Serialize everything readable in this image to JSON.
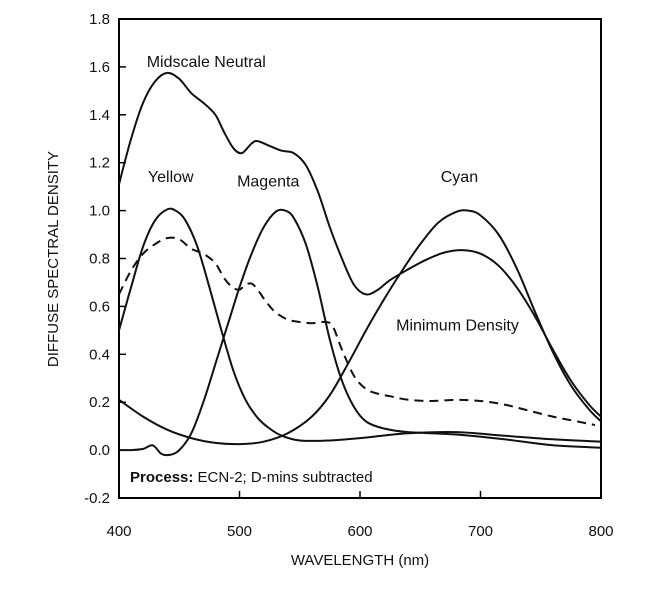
{
  "chart_data": {
    "type": "line",
    "xlabel": "WAVELENGTH (nm)",
    "ylabel": "DIFFUSE SPECTRAL DENSITY",
    "xlim": [
      400,
      800
    ],
    "ylim": [
      -0.2,
      1.8
    ],
    "x_ticks": [
      "400",
      "500",
      "600",
      "700",
      "800"
    ],
    "y_ticks": [
      "-0.2",
      "0.0",
      "0.2",
      "0.4",
      "0.6",
      "0.8",
      "1.0",
      "1.2",
      "1.4",
      "1.6",
      "1.8"
    ],
    "grid": false,
    "note": {
      "bold": "Process:",
      "text": " ECN-2; D-mins subtracted"
    },
    "series": [
      {
        "name": "Midscale Neutral",
        "dash": false,
        "label_pos": [
          423,
          1.6
        ],
        "points": [
          [
            400,
            1.11
          ],
          [
            410,
            1.3
          ],
          [
            420,
            1.45
          ],
          [
            430,
            1.54
          ],
          [
            440,
            1.575
          ],
          [
            450,
            1.55
          ],
          [
            460,
            1.49
          ],
          [
            470,
            1.45
          ],
          [
            480,
            1.4
          ],
          [
            487,
            1.33
          ],
          [
            495,
            1.26
          ],
          [
            502,
            1.24
          ],
          [
            510,
            1.28
          ],
          [
            515,
            1.29
          ],
          [
            525,
            1.27
          ],
          [
            535,
            1.25
          ],
          [
            545,
            1.24
          ],
          [
            555,
            1.19
          ],
          [
            565,
            1.08
          ],
          [
            575,
            0.93
          ],
          [
            585,
            0.8
          ],
          [
            595,
            0.69
          ],
          [
            605,
            0.65
          ],
          [
            615,
            0.67
          ],
          [
            625,
            0.71
          ],
          [
            640,
            0.755
          ],
          [
            655,
            0.795
          ],
          [
            670,
            0.825
          ],
          [
            685,
            0.835
          ],
          [
            700,
            0.82
          ],
          [
            715,
            0.77
          ],
          [
            730,
            0.68
          ],
          [
            745,
            0.56
          ],
          [
            760,
            0.42
          ],
          [
            775,
            0.29
          ],
          [
            790,
            0.19
          ],
          [
            800,
            0.14
          ]
        ]
      },
      {
        "name": "Yellow",
        "dash": false,
        "label_pos": [
          424,
          1.12
        ],
        "points": [
          [
            400,
            0.5
          ],
          [
            410,
            0.68
          ],
          [
            420,
            0.85
          ],
          [
            430,
            0.96
          ],
          [
            440,
            1.005
          ],
          [
            447,
            1.0
          ],
          [
            455,
            0.96
          ],
          [
            465,
            0.85
          ],
          [
            475,
            0.68
          ],
          [
            485,
            0.5
          ],
          [
            495,
            0.33
          ],
          [
            505,
            0.21
          ],
          [
            515,
            0.135
          ],
          [
            525,
            0.09
          ],
          [
            535,
            0.06
          ],
          [
            550,
            0.04
          ],
          [
            575,
            0.04
          ],
          [
            600,
            0.05
          ],
          [
            640,
            0.07
          ],
          [
            680,
            0.075
          ],
          [
            720,
            0.06
          ],
          [
            760,
            0.045
          ],
          [
            800,
            0.035
          ]
        ]
      },
      {
        "name": "Magenta",
        "dash": false,
        "label_pos": [
          498,
          1.1
        ],
        "points": [
          [
            400,
            0.0
          ],
          [
            410,
            0.0
          ],
          [
            420,
            0.005
          ],
          [
            428,
            0.02
          ],
          [
            435,
            -0.015
          ],
          [
            442,
            -0.02
          ],
          [
            450,
            0.0
          ],
          [
            460,
            0.07
          ],
          [
            470,
            0.2
          ],
          [
            480,
            0.36
          ],
          [
            490,
            0.52
          ],
          [
            500,
            0.68
          ],
          [
            510,
            0.82
          ],
          [
            520,
            0.93
          ],
          [
            530,
            0.995
          ],
          [
            538,
            1.0
          ],
          [
            545,
            0.97
          ],
          [
            555,
            0.86
          ],
          [
            565,
            0.68
          ],
          [
            575,
            0.46
          ],
          [
            585,
            0.29
          ],
          [
            595,
            0.18
          ],
          [
            605,
            0.12
          ],
          [
            620,
            0.09
          ],
          [
            640,
            0.075
          ],
          [
            680,
            0.065
          ],
          [
            720,
            0.045
          ],
          [
            760,
            0.02
          ],
          [
            800,
            0.01
          ]
        ]
      },
      {
        "name": "Cyan",
        "dash": false,
        "label_pos": [
          667,
          1.12
        ],
        "points": [
          [
            400,
            0.21
          ],
          [
            420,
            0.14
          ],
          [
            440,
            0.085
          ],
          [
            460,
            0.05
          ],
          [
            480,
            0.03
          ],
          [
            500,
            0.025
          ],
          [
            520,
            0.035
          ],
          [
            540,
            0.07
          ],
          [
            560,
            0.14
          ],
          [
            575,
            0.23
          ],
          [
            590,
            0.36
          ],
          [
            605,
            0.5
          ],
          [
            620,
            0.63
          ],
          [
            635,
            0.75
          ],
          [
            650,
            0.86
          ],
          [
            665,
            0.95
          ],
          [
            680,
            0.995
          ],
          [
            690,
            1.0
          ],
          [
            700,
            0.98
          ],
          [
            715,
            0.9
          ],
          [
            730,
            0.76
          ],
          [
            745,
            0.58
          ],
          [
            760,
            0.41
          ],
          [
            775,
            0.27
          ],
          [
            790,
            0.17
          ],
          [
            800,
            0.12
          ]
        ]
      },
      {
        "name": "Minimum Density",
        "dash": true,
        "label_pos": [
          630,
          0.5
        ],
        "points": [
          [
            400,
            0.65
          ],
          [
            410,
            0.75
          ],
          [
            420,
            0.82
          ],
          [
            430,
            0.86
          ],
          [
            440,
            0.885
          ],
          [
            450,
            0.88
          ],
          [
            460,
            0.84
          ],
          [
            470,
            0.82
          ],
          [
            480,
            0.78
          ],
          [
            487,
            0.72
          ],
          [
            494,
            0.68
          ],
          [
            500,
            0.67
          ],
          [
            505,
            0.69
          ],
          [
            510,
            0.695
          ],
          [
            515,
            0.67
          ],
          [
            522,
            0.62
          ],
          [
            530,
            0.575
          ],
          [
            540,
            0.545
          ],
          [
            550,
            0.535
          ],
          [
            560,
            0.53
          ],
          [
            570,
            0.535
          ],
          [
            577,
            0.52
          ],
          [
            585,
            0.42
          ],
          [
            595,
            0.31
          ],
          [
            605,
            0.255
          ],
          [
            615,
            0.235
          ],
          [
            625,
            0.225
          ],
          [
            640,
            0.21
          ],
          [
            660,
            0.205
          ],
          [
            680,
            0.21
          ],
          [
            700,
            0.205
          ],
          [
            720,
            0.19
          ],
          [
            740,
            0.165
          ],
          [
            760,
            0.14
          ],
          [
            780,
            0.12
          ],
          [
            795,
            0.105
          ]
        ]
      }
    ]
  }
}
